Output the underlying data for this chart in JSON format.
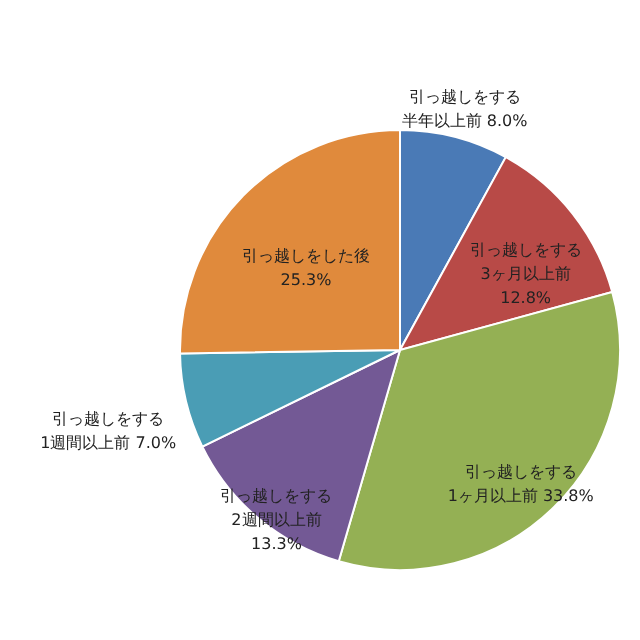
{
  "chart_data": {
    "type": "pie",
    "categories": [
      "引っ越しをする半年以上前",
      "引っ越しをする3ヶ月以上前",
      "引っ越しをする1ヶ月以上前",
      "引っ越しをする2週間以上前",
      "引っ越しをする1週間以上前",
      "引っ越しをした後"
    ],
    "values": [
      8.0,
      12.8,
      33.8,
      13.3,
      7.0,
      25.3
    ],
    "value_labels": [
      "8.0%",
      "12.8%",
      "33.8%",
      "13.3%",
      "7.0%",
      "25.3%"
    ],
    "colors": [
      "#4a7ab6",
      "#b84a47",
      "#94b054",
      "#735995",
      "#4a9db5",
      "#e08a3c"
    ],
    "legend": false
  }
}
